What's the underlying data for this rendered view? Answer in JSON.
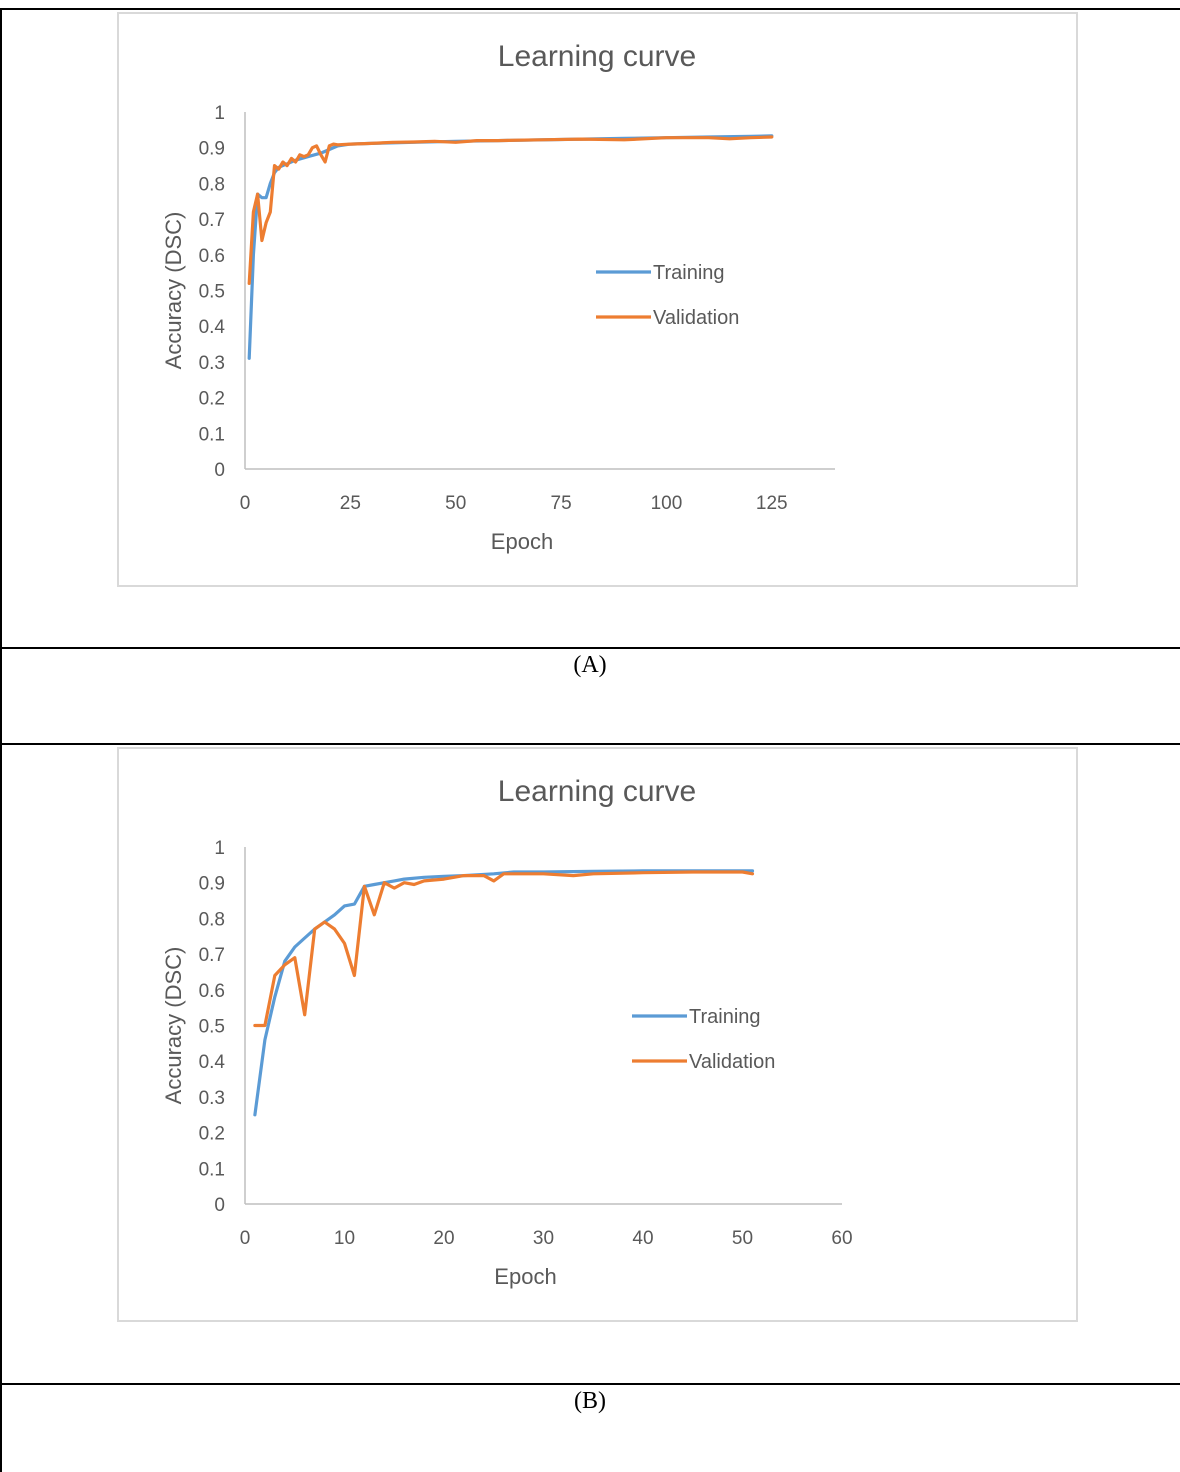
{
  "panels": [
    {
      "caption": "(A)",
      "chart_data": {
        "type": "line",
        "title": "Learning curve",
        "xlabel": "Epoch",
        "ylabel": "Accuracy (DSC)",
        "xlim": [
          0,
          140
        ],
        "ylim": [
          0,
          1
        ],
        "x_ticks": [
          0,
          25,
          50,
          75,
          100,
          125
        ],
        "y_ticks": [
          0,
          0.1,
          0.2,
          0.3,
          0.4,
          0.5,
          0.6,
          0.7,
          0.8,
          0.9,
          1
        ],
        "grid": false,
        "legend_position": "right",
        "series": [
          {
            "name": "Training",
            "color": "#5b9bd5",
            "x": [
              1,
              2,
              3,
              4,
              5,
              6,
              7,
              8,
              10,
              12,
              15,
              18,
              20,
              22,
              25,
              30,
              40,
              50,
              60,
              75,
              90,
              100,
              110,
              120,
              125
            ],
            "values": [
              0.31,
              0.6,
              0.77,
              0.76,
              0.76,
              0.8,
              0.83,
              0.845,
              0.855,
              0.865,
              0.875,
              0.885,
              0.895,
              0.905,
              0.91,
              0.912,
              0.915,
              0.918,
              0.92,
              0.923,
              0.926,
              0.928,
              0.93,
              0.932,
              0.933
            ]
          },
          {
            "name": "Validation",
            "color": "#ed7d31",
            "x": [
              1,
              2,
              3,
              4,
              5,
              6,
              7,
              8,
              9,
              10,
              11,
              12,
              13,
              14,
              15,
              16,
              17,
              18,
              19,
              20,
              21,
              22,
              25,
              30,
              35,
              40,
              45,
              50,
              55,
              60,
              70,
              80,
              90,
              100,
              110,
              115,
              120,
              125
            ],
            "values": [
              0.52,
              0.72,
              0.77,
              0.64,
              0.69,
              0.72,
              0.85,
              0.84,
              0.86,
              0.85,
              0.87,
              0.86,
              0.88,
              0.875,
              0.88,
              0.9,
              0.905,
              0.88,
              0.86,
              0.905,
              0.91,
              0.908,
              0.91,
              0.912,
              0.915,
              0.916,
              0.918,
              0.915,
              0.92,
              0.92,
              0.922,
              0.924,
              0.922,
              0.928,
              0.928,
              0.925,
              0.928,
              0.93
            ]
          }
        ]
      }
    },
    {
      "caption": "(B)",
      "chart_data": {
        "type": "line",
        "title": "Learning curve",
        "xlabel": "Epoch",
        "ylabel": "Accuracy (DSC)",
        "xlim": [
          0,
          60
        ],
        "ylim": [
          0,
          1
        ],
        "x_ticks": [
          0,
          10,
          20,
          30,
          40,
          50,
          60
        ],
        "y_ticks": [
          0,
          0.1,
          0.2,
          0.3,
          0.4,
          0.5,
          0.6,
          0.7,
          0.8,
          0.9,
          1
        ],
        "grid": false,
        "legend_position": "right",
        "series": [
          {
            "name": "Training",
            "color": "#5b9bd5",
            "x": [
              1,
              2,
              3,
              4,
              5,
              6,
              7,
              8,
              9,
              10,
              11,
              12,
              13,
              14,
              15,
              16,
              18,
              20,
              22,
              25,
              27,
              30,
              35,
              40,
              45,
              50,
              51
            ],
            "values": [
              0.25,
              0.46,
              0.58,
              0.68,
              0.72,
              0.745,
              0.77,
              0.79,
              0.81,
              0.835,
              0.84,
              0.89,
              0.895,
              0.9,
              0.905,
              0.91,
              0.915,
              0.918,
              0.92,
              0.925,
              0.93,
              0.93,
              0.932,
              0.933,
              0.933,
              0.933,
              0.933
            ]
          },
          {
            "name": "Validation",
            "color": "#ed7d31",
            "x": [
              1,
              2,
              3,
              4,
              5,
              6,
              7,
              8,
              9,
              10,
              11,
              12,
              13,
              14,
              15,
              16,
              17,
              18,
              20,
              22,
              24,
              25,
              26,
              27,
              30,
              33,
              35,
              40,
              45,
              50,
              51
            ],
            "values": [
              0.5,
              0.5,
              0.64,
              0.67,
              0.69,
              0.53,
              0.77,
              0.79,
              0.77,
              0.73,
              0.64,
              0.89,
              0.81,
              0.9,
              0.885,
              0.9,
              0.895,
              0.905,
              0.91,
              0.92,
              0.92,
              0.905,
              0.925,
              0.925,
              0.925,
              0.92,
              0.925,
              0.928,
              0.93,
              0.93,
              0.925
            ]
          }
        ]
      }
    }
  ]
}
